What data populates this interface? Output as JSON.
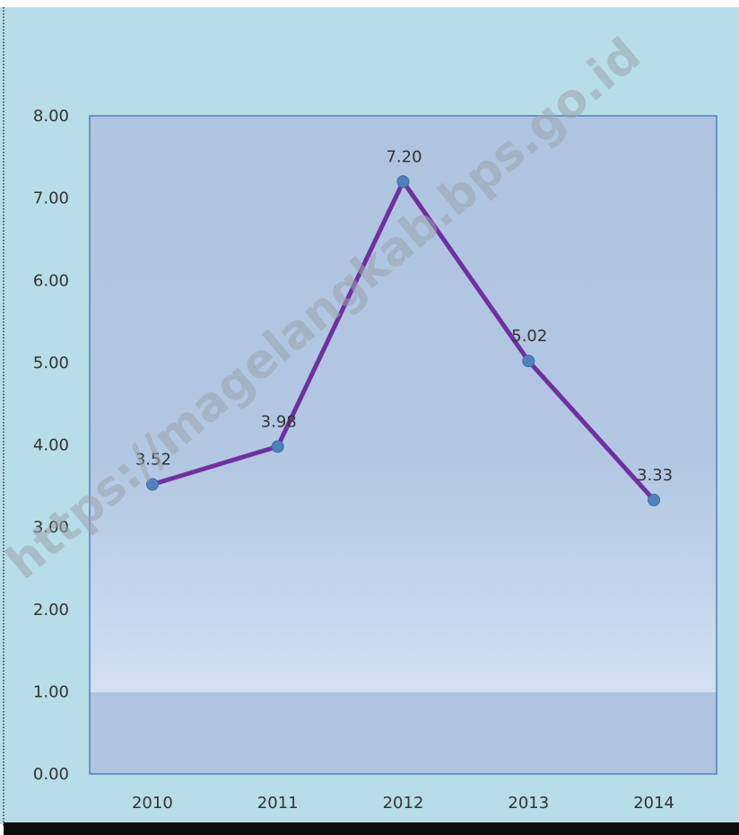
{
  "chart_data": {
    "type": "line",
    "categories": [
      "2010",
      "2011",
      "2012",
      "2013",
      "2014"
    ],
    "series": [
      {
        "values": [
          3.52,
          3.98,
          7.2,
          5.02,
          3.33
        ],
        "data_labels": [
          "3.52",
          "3.98",
          "7.20",
          "5.02",
          "3.33"
        ],
        "line_color": "#7030a0",
        "marker_color": "#4f81bd"
      }
    ],
    "ylim": [
      0,
      8
    ],
    "yticks": [
      0,
      1,
      2,
      3,
      4,
      5,
      6,
      7,
      8
    ],
    "ytick_labels": [
      "0.00",
      "1.00",
      "2.00",
      "3.00",
      "4.00",
      "5.00",
      "6.00",
      "7.00",
      "8.00"
    ],
    "grid": false,
    "legend": "none",
    "title": "",
    "xlabel": "",
    "ylabel": ""
  },
  "colors": {
    "chart_background": "#b7dde8",
    "plot_background": "#afc4e0",
    "plot_border": "#4f81bd"
  },
  "watermark": {
    "text": "https://magelangkab.bps.go.id"
  }
}
